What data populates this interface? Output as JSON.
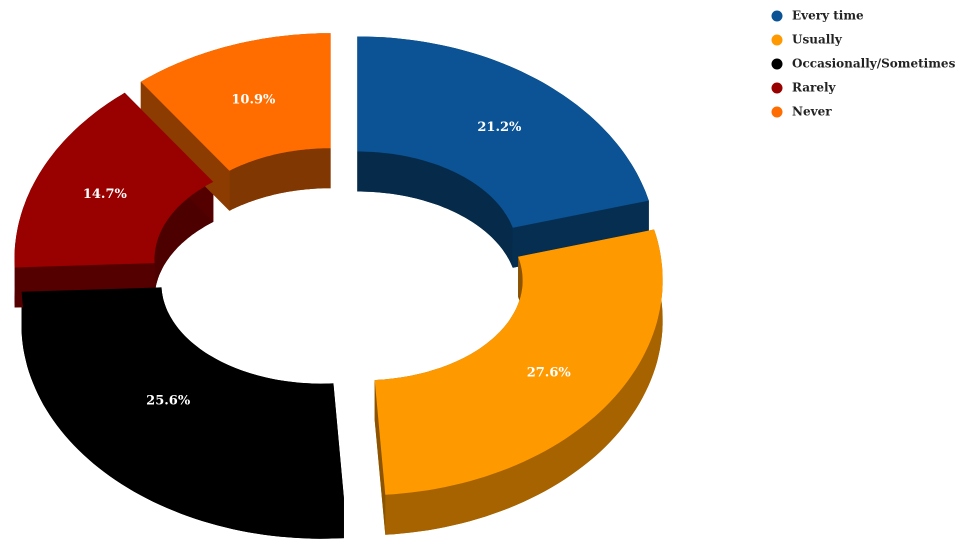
{
  "chart_data": {
    "type": "pie",
    "categories": [
      "Every time",
      "Usually",
      "Occasionally/Sometimes",
      "Rarely",
      "Never"
    ],
    "values": [
      21.2,
      27.6,
      25.6,
      14.7,
      10.9
    ],
    "value_labels": [
      "21.2%",
      "27.6%",
      "25.6%",
      "14.7%",
      "10.9%"
    ],
    "colors": [
      "#0b5394",
      "#ff9900",
      "#000000",
      "#990000",
      "#ff6d01"
    ],
    "legend": "top-right"
  }
}
